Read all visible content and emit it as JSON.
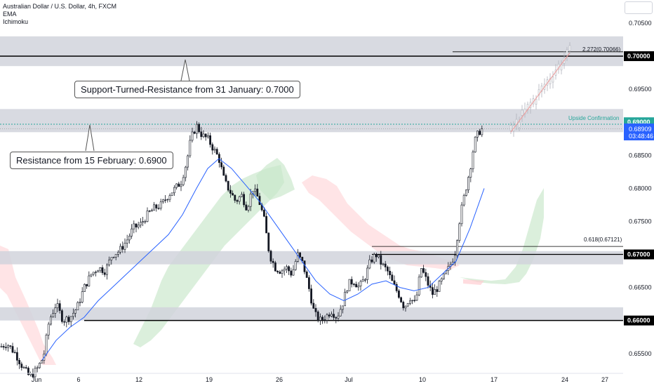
{
  "legend": {
    "title": "Australian Dollar / U.S. Dollar, 4h, FXCM",
    "line2": "EMA",
    "line3": "Ichimoku"
  },
  "annotations": {
    "resistance_700": "Support-Turned-Resistance from 31 January: 0.7000",
    "resistance_690": "Resistance from 15 February: 0.6900",
    "upside_confirmation": "Upside Confirmation",
    "fib_2272": "2.272(0.70066)",
    "fib_618": "0.618(0.67121)"
  },
  "price_tag": {
    "price": "0.68909",
    "countdown": "03:48:46"
  },
  "colors": {
    "up_candle": "#131722",
    "ema": "#2962ff",
    "cloud_bull": "#c8e6c9",
    "cloud_bear": "#ffcdd2",
    "zone": "#d1d4dc",
    "dotted": "#26a69a",
    "projection": "#ef9a9a"
  },
  "chart_data": {
    "type": "candlestick",
    "title": "Australian Dollar / U.S. Dollar, 4h, FXCM",
    "ylim": [
      0.652,
      0.7085
    ],
    "y_ticks": [
      "0.70500",
      "0.70000",
      "0.69500",
      "0.69000",
      "0.68500",
      "0.68000",
      "0.67500",
      "0.67000",
      "0.66500",
      "0.66000",
      "0.65500"
    ],
    "x_ticks": [
      "Jun",
      "6",
      "12",
      "19",
      "26",
      "Jul",
      "10",
      "17",
      "24",
      "27"
    ],
    "highlighted_levels": [
      {
        "value": 0.7,
        "label": "0.70000"
      },
      {
        "value": 0.69,
        "label": "0.69000"
      },
      {
        "value": 0.67,
        "label": "0.67000"
      },
      {
        "value": 0.66,
        "label": "0.66000"
      }
    ],
    "zones": [
      {
        "from": 0.6985,
        "to": 0.703
      },
      {
        "from": 0.6885,
        "to": 0.692
      },
      {
        "from": 0.6685,
        "to": 0.6705
      },
      {
        "from": 0.66,
        "to": 0.662
      }
    ],
    "price_path": [
      [
        0,
        0.656
      ],
      [
        10,
        0.6565
      ],
      [
        22,
        0.655
      ],
      [
        32,
        0.653
      ],
      [
        42,
        0.6515
      ],
      [
        52,
        0.6525
      ],
      [
        62,
        0.6545
      ],
      [
        70,
        0.66
      ],
      [
        80,
        0.6625
      ],
      [
        90,
        0.66
      ],
      [
        100,
        0.6605
      ],
      [
        110,
        0.662
      ],
      [
        120,
        0.665
      ],
      [
        130,
        0.667
      ],
      [
        140,
        0.668
      ],
      [
        150,
        0.6675
      ],
      [
        160,
        0.67
      ],
      [
        170,
        0.6705
      ],
      [
        180,
        0.672
      ],
      [
        190,
        0.674
      ],
      [
        200,
        0.6745
      ],
      [
        210,
        0.676
      ],
      [
        220,
        0.677
      ],
      [
        230,
        0.6775
      ],
      [
        240,
        0.679
      ],
      [
        250,
        0.68
      ],
      [
        258,
        0.681
      ],
      [
        266,
        0.684
      ],
      [
        272,
        0.6875
      ],
      [
        280,
        0.6895
      ],
      [
        288,
        0.688
      ],
      [
        296,
        0.6875
      ],
      [
        304,
        0.686
      ],
      [
        312,
        0.6845
      ],
      [
        320,
        0.681
      ],
      [
        328,
        0.6795
      ],
      [
        336,
        0.678
      ],
      [
        344,
        0.679
      ],
      [
        352,
        0.677
      ],
      [
        360,
        0.68
      ],
      [
        368,
        0.6785
      ],
      [
        376,
        0.6755
      ],
      [
        384,
        0.67
      ],
      [
        392,
        0.668
      ],
      [
        400,
        0.6675
      ],
      [
        408,
        0.668
      ],
      [
        416,
        0.667
      ],
      [
        424,
        0.67
      ],
      [
        432,
        0.6685
      ],
      [
        440,
        0.665
      ],
      [
        448,
        0.661
      ],
      [
        456,
        0.66
      ],
      [
        464,
        0.6605
      ],
      [
        472,
        0.6615
      ],
      [
        480,
        0.6605
      ],
      [
        488,
        0.6625
      ],
      [
        496,
        0.6655
      ],
      [
        504,
        0.666
      ],
      [
        512,
        0.665
      ],
      [
        520,
        0.6665
      ],
      [
        528,
        0.669
      ],
      [
        536,
        0.67
      ],
      [
        544,
        0.6685
      ],
      [
        552,
        0.6675
      ],
      [
        560,
        0.6655
      ],
      [
        568,
        0.664
      ],
      [
        576,
        0.662
      ],
      [
        584,
        0.6635
      ],
      [
        592,
        0.6625
      ],
      [
        600,
        0.668
      ],
      [
        608,
        0.666
      ],
      [
        616,
        0.664
      ],
      [
        624,
        0.665
      ],
      [
        632,
        0.6665
      ],
      [
        640,
        0.668
      ],
      [
        648,
        0.67
      ],
      [
        656,
        0.676
      ],
      [
        664,
        0.68
      ],
      [
        670,
        0.683
      ],
      [
        676,
        0.687
      ],
      [
        682,
        0.6885
      ],
      [
        688,
        0.689
      ]
    ],
    "ema_path": [
      [
        60,
        0.654
      ],
      [
        80,
        0.657
      ],
      [
        100,
        0.659
      ],
      [
        120,
        0.6605
      ],
      [
        140,
        0.663
      ],
      [
        160,
        0.665
      ],
      [
        180,
        0.667
      ],
      [
        200,
        0.669
      ],
      [
        220,
        0.671
      ],
      [
        240,
        0.673
      ],
      [
        260,
        0.676
      ],
      [
        280,
        0.68
      ],
      [
        296,
        0.683
      ],
      [
        312,
        0.6845
      ],
      [
        330,
        0.683
      ],
      [
        350,
        0.6805
      ],
      [
        370,
        0.678
      ],
      [
        390,
        0.675
      ],
      [
        410,
        0.672
      ],
      [
        430,
        0.669
      ],
      [
        450,
        0.666
      ],
      [
        470,
        0.664
      ],
      [
        490,
        0.663
      ],
      [
        510,
        0.664
      ],
      [
        530,
        0.6655
      ],
      [
        550,
        0.666
      ],
      [
        570,
        0.665
      ],
      [
        590,
        0.6645
      ],
      [
        610,
        0.665
      ],
      [
        630,
        0.667
      ],
      [
        650,
        0.669
      ],
      [
        670,
        0.674
      ],
      [
        690,
        0.68
      ]
    ],
    "projection_path": [
      [
        728,
        0.6885
      ],
      [
        812,
        0.7005
      ]
    ]
  }
}
